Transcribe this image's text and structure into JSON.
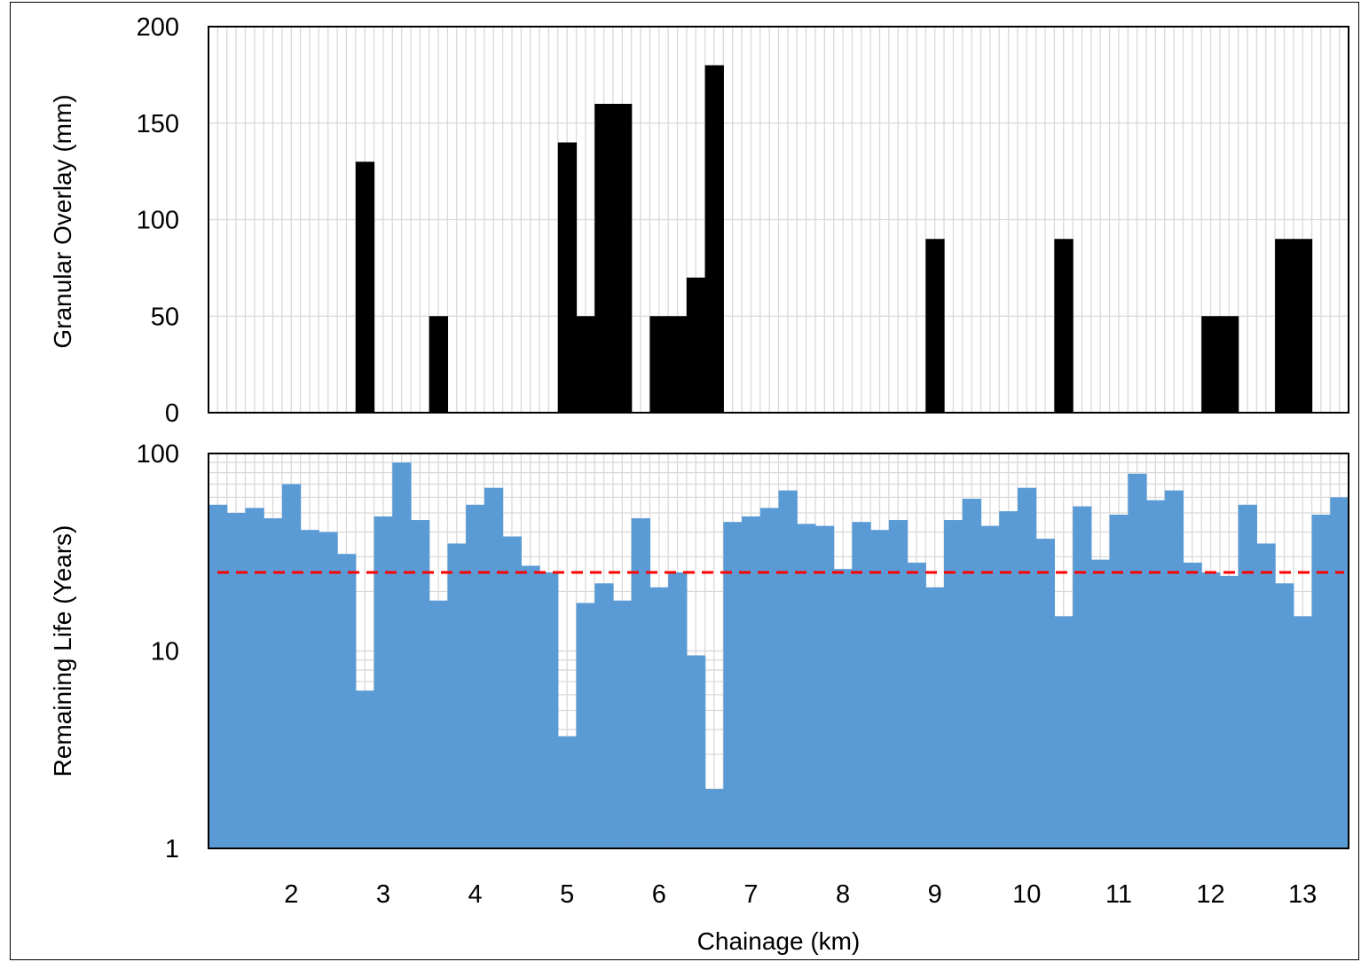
{
  "chart_data": [
    {
      "type": "bar",
      "ylabel": "Granular Overlay (mm)",
      "ylim": [
        0,
        200
      ],
      "yticks": [
        0,
        50,
        100,
        150,
        200
      ],
      "x_start_km": 1.1,
      "bin_km": 0.2,
      "x_end_km": 13.5,
      "grid": true,
      "color": "#000000",
      "values": [
        0,
        0,
        0,
        0,
        0,
        0,
        0,
        0,
        130,
        0,
        0,
        0,
        50,
        0,
        0,
        0,
        0,
        0,
        0,
        140,
        50,
        160,
        160,
        0,
        50,
        50,
        70,
        180,
        0,
        0,
        0,
        0,
        0,
        0,
        0,
        0,
        0,
        0,
        0,
        90,
        0,
        0,
        0,
        0,
        0,
        0,
        90,
        0,
        0,
        0,
        0,
        0,
        0,
        0,
        50,
        50,
        0,
        0,
        90,
        90,
        0,
        0
      ]
    },
    {
      "type": "bar",
      "ylabel": "Remaining Life (Years)",
      "yscale": "log",
      "ylim": [
        1,
        100
      ],
      "yticks": [
        1,
        10,
        100
      ],
      "xlabel": "Chainage (km)",
      "xticks": [
        2,
        3,
        4,
        5,
        6,
        7,
        8,
        9,
        10,
        11,
        12,
        13
      ],
      "x_start_km": 1.1,
      "bin_km": 0.2,
      "x_end_km": 13.5,
      "grid": true,
      "color": "#5b9bd5",
      "threshold": {
        "value": 25,
        "color": "#ff0000",
        "style": "dashed"
      },
      "values": [
        55,
        50,
        53,
        47,
        70,
        41,
        40,
        31,
        6.3,
        48,
        90,
        46,
        18,
        35,
        55,
        67,
        38,
        27,
        25,
        3.7,
        17.5,
        22,
        18,
        47,
        21,
        25,
        9.5,
        2,
        45,
        48,
        53,
        65,
        44,
        43,
        26,
        45,
        41,
        46,
        28,
        21,
        46,
        59,
        43,
        51,
        67,
        37,
        15,
        54,
        29,
        49,
        79,
        58,
        65,
        28,
        25,
        24,
        55,
        35,
        22,
        15,
        49,
        60
      ]
    }
  ]
}
